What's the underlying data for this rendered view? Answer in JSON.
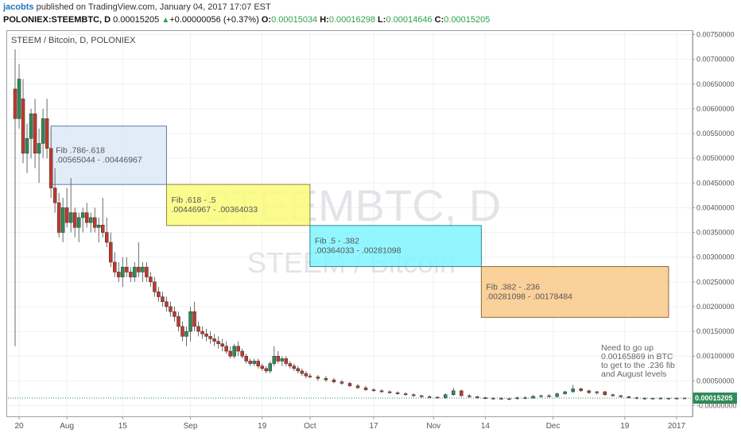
{
  "header": {
    "author": "jacobts",
    "published_text": "published on TradingView.com, January 04, 2017 17:07 EST",
    "symbol": "POLONIEX:STEEMBTC, D",
    "last_price": "0.00015205",
    "change": "+0.00000056 (+0.37%)",
    "o_label": "O:",
    "o_value": "0.00015034",
    "h_label": "H:",
    "h_value": "0.00016298",
    "l_label": "L:",
    "l_value": "0.00014646",
    "c_label": "C:",
    "c_value": "0.00015205"
  },
  "chart_data": {
    "type": "candlestick",
    "title": "STEEM / Bitcoin, D, POLONIEX",
    "watermark_symbol": "STEEMBTC, D",
    "watermark_name": "STEEM / Bitcoin",
    "x_ticks": [
      "20",
      "Aug",
      "15",
      "Sep",
      "19",
      "Oct",
      "17",
      "Nov",
      "14",
      "Dec",
      "19",
      "2017"
    ],
    "x_tick_dates": [
      "2016-07-20",
      "2016-08-01",
      "2016-08-15",
      "2016-09-01",
      "2016-09-19",
      "2016-10-01",
      "2016-10-17",
      "2016-11-01",
      "2016-11-14",
      "2016-12-01",
      "2016-12-19",
      "2017-01-01"
    ],
    "x_range": [
      "2016-07-18",
      "2017-01-04"
    ],
    "y_ticks": [
      "0.00750000",
      "0.00700000",
      "0.00650000",
      "0.00600000",
      "0.00550000",
      "0.00500000",
      "0.00450000",
      "0.00400000",
      "0.00350000",
      "0.00300000",
      "0.00250000",
      "0.00200000",
      "0.00150000",
      "0.00100000",
      "0.00050000",
      "-0.00000000"
    ],
    "ylim": [
      -0.00015,
      0.0075
    ],
    "last_price_label": "0.00015205",
    "last_price": 0.00015205,
    "candles": [
      [
        "2016-07-19",
        0.0064,
        0.0072,
        0.0012,
        0.0058
      ],
      [
        "2016-07-20",
        0.0058,
        0.0069,
        0.0056,
        0.0066
      ],
      [
        "2016-07-21",
        0.0062,
        0.0066,
        0.0049,
        0.0051
      ],
      [
        "2016-07-22",
        0.0051,
        0.0057,
        0.0047,
        0.0054
      ],
      [
        "2016-07-23",
        0.0054,
        0.006,
        0.005,
        0.0059
      ],
      [
        "2016-07-24",
        0.0059,
        0.0062,
        0.0048,
        0.0051
      ],
      [
        "2016-07-25",
        0.0051,
        0.0056,
        0.0045,
        0.0053
      ],
      [
        "2016-07-26",
        0.0053,
        0.006,
        0.005,
        0.0058
      ],
      [
        "2016-07-27",
        0.0058,
        0.0062,
        0.005,
        0.0052
      ],
      [
        "2016-07-28",
        0.0052,
        0.0056,
        0.0042,
        0.0044
      ],
      [
        "2016-07-29",
        0.0044,
        0.0048,
        0.0039,
        0.0041
      ],
      [
        "2016-07-30",
        0.0041,
        0.0043,
        0.0034,
        0.0035
      ],
      [
        "2016-07-31",
        0.0035,
        0.0042,
        0.0033,
        0.004
      ],
      [
        "2016-08-01",
        0.004,
        0.0044,
        0.0036,
        0.0037
      ],
      [
        "2016-08-02",
        0.0037,
        0.0046,
        0.0035,
        0.0039
      ],
      [
        "2016-08-03",
        0.0039,
        0.004,
        0.0034,
        0.0036
      ],
      [
        "2016-08-04",
        0.0036,
        0.0039,
        0.0033,
        0.0038
      ],
      [
        "2016-08-05",
        0.0038,
        0.004,
        0.0035,
        0.0039
      ],
      [
        "2016-08-06",
        0.0039,
        0.0041,
        0.0036,
        0.0037
      ],
      [
        "2016-08-07",
        0.0037,
        0.0039,
        0.0035,
        0.0038
      ],
      [
        "2016-08-08",
        0.0038,
        0.004,
        0.0035,
        0.0036
      ],
      [
        "2016-08-09",
        0.0036,
        0.0038,
        0.0033,
        0.00365
      ],
      [
        "2016-08-10",
        0.00365,
        0.0042,
        0.0034,
        0.0035
      ],
      [
        "2016-08-11",
        0.0035,
        0.0038,
        0.0032,
        0.0033
      ],
      [
        "2016-08-12",
        0.0033,
        0.0035,
        0.0028,
        0.0029
      ],
      [
        "2016-08-13",
        0.0029,
        0.0031,
        0.0026,
        0.0027
      ],
      [
        "2016-08-14",
        0.0027,
        0.0029,
        0.0025,
        0.0026
      ],
      [
        "2016-08-15",
        0.0026,
        0.003,
        0.0024,
        0.0028
      ],
      [
        "2016-08-16",
        0.0028,
        0.003,
        0.0026,
        0.0027
      ],
      [
        "2016-08-17",
        0.0027,
        0.0028,
        0.0025,
        0.0026
      ],
      [
        "2016-08-18",
        0.0026,
        0.0029,
        0.0025,
        0.0028
      ],
      [
        "2016-08-19",
        0.0028,
        0.0033,
        0.0026,
        0.0027
      ],
      [
        "2016-08-20",
        0.0027,
        0.0029,
        0.0025,
        0.0028
      ],
      [
        "2016-08-21",
        0.0028,
        0.0029,
        0.0025,
        0.0026
      ],
      [
        "2016-08-22",
        0.0026,
        0.0027,
        0.0024,
        0.0025
      ],
      [
        "2016-08-23",
        0.0025,
        0.0026,
        0.0022,
        0.0023
      ],
      [
        "2016-08-24",
        0.0023,
        0.0024,
        0.0021,
        0.0022
      ],
      [
        "2016-08-25",
        0.0022,
        0.0023,
        0.002,
        0.0021
      ],
      [
        "2016-08-26",
        0.0021,
        0.0022,
        0.0019,
        0.002
      ],
      [
        "2016-08-27",
        0.002,
        0.0021,
        0.0018,
        0.0019
      ],
      [
        "2016-08-28",
        0.0019,
        0.002,
        0.0017,
        0.0018
      ],
      [
        "2016-08-29",
        0.0018,
        0.0019,
        0.0015,
        0.0016
      ],
      [
        "2016-08-30",
        0.0016,
        0.0017,
        0.0013,
        0.0014
      ],
      [
        "2016-08-31",
        0.0014,
        0.0016,
        0.0012,
        0.0015
      ],
      [
        "2016-09-01",
        0.0015,
        0.002,
        0.0013,
        0.0019
      ],
      [
        "2016-09-02",
        0.0019,
        0.0021,
        0.0015,
        0.0016
      ],
      [
        "2016-09-03",
        0.0016,
        0.0017,
        0.0014,
        0.0015
      ],
      [
        "2016-09-04",
        0.0015,
        0.0016,
        0.00135,
        0.00145
      ],
      [
        "2016-09-05",
        0.00145,
        0.00155,
        0.0013,
        0.0014
      ],
      [
        "2016-09-06",
        0.0014,
        0.0015,
        0.00125,
        0.00135
      ],
      [
        "2016-09-07",
        0.00135,
        0.00145,
        0.0012,
        0.0013
      ],
      [
        "2016-09-08",
        0.0013,
        0.0014,
        0.00115,
        0.00125
      ],
      [
        "2016-09-09",
        0.00125,
        0.00135,
        0.0011,
        0.0012
      ],
      [
        "2016-09-10",
        0.0012,
        0.0013,
        0.00105,
        0.0011
      ],
      [
        "2016-09-11",
        0.0011,
        0.0012,
        0.00095,
        0.001
      ],
      [
        "2016-09-12",
        0.001,
        0.00125,
        0.00095,
        0.0012
      ],
      [
        "2016-09-13",
        0.0012,
        0.0013,
        0.001,
        0.0011
      ],
      [
        "2016-09-14",
        0.0011,
        0.00115,
        0.00095,
        0.001
      ],
      [
        "2016-09-15",
        0.001,
        0.00105,
        0.00085,
        0.0009
      ],
      [
        "2016-09-16",
        0.0009,
        0.00095,
        0.0008,
        0.00085
      ],
      [
        "2016-09-17",
        0.00085,
        0.00095,
        0.0008,
        0.0009
      ],
      [
        "2016-09-18",
        0.0009,
        0.00095,
        0.00075,
        0.0008
      ],
      [
        "2016-09-19",
        0.0008,
        0.00085,
        0.0007,
        0.00075
      ],
      [
        "2016-09-20",
        0.00075,
        0.0008,
        0.00065,
        0.0007
      ],
      [
        "2016-09-21",
        0.0007,
        0.0009,
        0.00065,
        0.00085
      ],
      [
        "2016-09-22",
        0.00085,
        0.0012,
        0.0008,
        0.001
      ],
      [
        "2016-09-23",
        0.001,
        0.0011,
        0.00085,
        0.0009
      ],
      [
        "2016-09-24",
        0.0009,
        0.001,
        0.0008,
        0.00095
      ],
      [
        "2016-09-25",
        0.00095,
        0.001,
        0.0008,
        0.00085
      ],
      [
        "2016-09-26",
        0.00085,
        0.0009,
        0.00075,
        0.0008
      ],
      [
        "2016-09-27",
        0.0008,
        0.00085,
        0.0007,
        0.00075
      ],
      [
        "2016-09-28",
        0.00075,
        0.0008,
        0.00065,
        0.0007
      ],
      [
        "2016-09-29",
        0.0007,
        0.00075,
        0.0006,
        0.00065
      ],
      [
        "2016-09-30",
        0.00065,
        0.0007,
        0.00055,
        0.0006
      ],
      [
        "2016-10-01",
        0.0006,
        0.00065,
        0.00055,
        0.00058
      ],
      [
        "2016-10-03",
        0.00058,
        0.00062,
        0.0005,
        0.00055
      ],
      [
        "2016-10-05",
        0.00055,
        0.0006,
        0.00048,
        0.00052
      ],
      [
        "2016-10-07",
        0.00052,
        0.00056,
        0.00045,
        0.00048
      ],
      [
        "2016-10-09",
        0.00048,
        0.00052,
        0.00042,
        0.00045
      ],
      [
        "2016-10-11",
        0.00045,
        0.00048,
        0.00038,
        0.0004
      ],
      [
        "2016-10-13",
        0.0004,
        0.00044,
        0.00034,
        0.00036
      ],
      [
        "2016-10-15",
        0.00036,
        0.0004,
        0.0003,
        0.00032
      ],
      [
        "2016-10-17",
        0.00032,
        0.00035,
        0.00028,
        0.0003
      ],
      [
        "2016-10-19",
        0.0003,
        0.00033,
        0.00026,
        0.00028
      ],
      [
        "2016-10-21",
        0.00028,
        0.00031,
        0.00024,
        0.00026
      ],
      [
        "2016-10-23",
        0.00026,
        0.00029,
        0.00022,
        0.00024
      ],
      [
        "2016-10-25",
        0.00024,
        0.00027,
        0.0002,
        0.00022
      ],
      [
        "2016-10-27",
        0.00022,
        0.00025,
        0.00018,
        0.0002
      ],
      [
        "2016-10-29",
        0.0002,
        0.00022,
        0.00016,
        0.00018
      ],
      [
        "2016-10-31",
        0.00018,
        0.00021,
        0.00015,
        0.00017
      ],
      [
        "2016-11-02",
        0.00017,
        0.00019,
        0.00014,
        0.00016
      ],
      [
        "2016-11-04",
        0.00016,
        0.00025,
        0.00014,
        0.00022
      ],
      [
        "2016-11-06",
        0.00022,
        0.00036,
        0.0002,
        0.0003
      ],
      [
        "2016-11-08",
        0.0003,
        0.00032,
        0.00018,
        0.0002
      ],
      [
        "2016-11-10",
        0.0002,
        0.00023,
        0.00016,
        0.00018
      ],
      [
        "2016-11-12",
        0.00018,
        0.0002,
        0.00014,
        0.00016
      ],
      [
        "2016-11-14",
        0.00016,
        0.00018,
        0.00013,
        0.00014
      ],
      [
        "2016-11-16",
        0.00014,
        0.00017,
        0.00012,
        0.00015
      ],
      [
        "2016-11-18",
        0.00015,
        0.00017,
        0.00012,
        0.00013
      ],
      [
        "2016-11-20",
        0.00013,
        0.00016,
        0.00011,
        0.00014
      ],
      [
        "2016-11-22",
        0.00014,
        0.00018,
        0.00012,
        0.00016
      ],
      [
        "2016-11-24",
        0.00016,
        0.00019,
        0.00013,
        0.00015
      ],
      [
        "2016-11-26",
        0.00015,
        0.00021,
        0.00014,
        0.00019
      ],
      [
        "2016-11-28",
        0.00019,
        0.00022,
        0.00016,
        0.0002
      ],
      [
        "2016-11-30",
        0.0002,
        0.00023,
        0.00017,
        0.00018
      ],
      [
        "2016-12-02",
        0.00018,
        0.00026,
        0.00017,
        0.00024
      ],
      [
        "2016-12-04",
        0.00024,
        0.0003,
        0.00022,
        0.00028
      ],
      [
        "2016-12-06",
        0.00028,
        0.00042,
        0.00026,
        0.00034
      ],
      [
        "2016-12-08",
        0.00034,
        0.00036,
        0.00028,
        0.0003
      ],
      [
        "2016-12-10",
        0.0003,
        0.00032,
        0.00024,
        0.00026
      ],
      [
        "2016-12-12",
        0.00026,
        0.0003,
        0.00022,
        0.00028
      ],
      [
        "2016-12-14",
        0.00028,
        0.0003,
        0.0002,
        0.00022
      ],
      [
        "2016-12-16",
        0.00022,
        0.00024,
        0.00018,
        0.0002
      ],
      [
        "2016-12-18",
        0.0002,
        0.00022,
        0.00016,
        0.00018
      ],
      [
        "2016-12-20",
        0.00018,
        0.0002,
        0.00014,
        0.00016
      ],
      [
        "2016-12-22",
        0.00016,
        0.00018,
        0.00013,
        0.00015
      ],
      [
        "2016-12-24",
        0.00015,
        0.00017,
        0.00012,
        0.00014
      ],
      [
        "2016-12-26",
        0.00014,
        0.00016,
        0.00012,
        0.00015
      ],
      [
        "2016-12-28",
        0.00015,
        0.00017,
        0.00013,
        0.00014
      ],
      [
        "2016-12-30",
        0.00014,
        0.00016,
        0.00012,
        0.00015
      ],
      [
        "2017-01-01",
        0.00015,
        0.00017,
        0.00013,
        0.00014
      ],
      [
        "2017-01-03",
        0.00015034,
        0.00016298,
        0.00014646,
        0.00015205
      ]
    ],
    "annotation_boxes": [
      {
        "line1": "Fib .786-.618",
        "line2": ".00565044 - .00446967",
        "x_start": "2016-07-28",
        "x_end": "2016-08-26",
        "y_top": 0.00565044,
        "y_bottom": 0.00446967,
        "fill": "#dce9f7",
        "stroke": "#5b7fa6"
      },
      {
        "line1": "Fib .618 - .5",
        "line2": ".00446967 - .00364033",
        "x_start": "2016-08-26",
        "x_end": "2016-10-01",
        "y_top": 0.00446967,
        "y_bottom": 0.00364033,
        "fill": "#fbfb7a",
        "stroke": "#8a8a3a"
      },
      {
        "line1": "Fib .5 - .382",
        "line2": ".00364033 - .00281098",
        "x_start": "2016-10-01",
        "x_end": "2016-11-13",
        "y_top": 0.00364033,
        "y_bottom": 0.00281098,
        "fill": "#7ff4ff",
        "stroke": "#2b8a94"
      },
      {
        "line1": "Fib .382 - .236",
        "line2": ".00281098 - .00178484",
        "x_start": "2016-11-13",
        "x_end": "2016-12-30",
        "y_top": 0.00281098,
        "y_bottom": 0.00178484,
        "fill": "#fac98a",
        "stroke": "#8a6a3a"
      }
    ],
    "note_lines": [
      "Need to go up",
      "0.00165869 in BTC",
      "to get to the .236 fib",
      "and August levels"
    ],
    "up_color": "#2e8b57",
    "down_color": "#c0392b",
    "grid": true
  }
}
